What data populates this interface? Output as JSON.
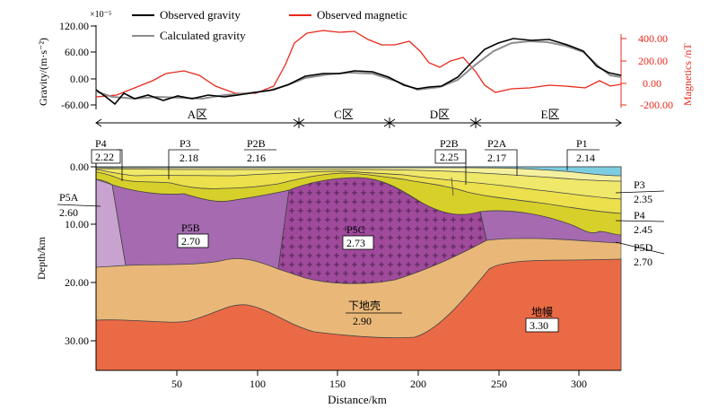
{
  "colors": {
    "observed_gravity": "#000000",
    "calculated_gravity": "#8c8c8c",
    "observed_magnetic": "#e8281c",
    "magnetic_axis": "#e8281c",
    "P1_water": "#7ccde0",
    "P2A": "#f4f0a0",
    "P2B": "#f0e86a",
    "P3": "#ece04c",
    "P4": "#d8d02a",
    "P5A": "#c9a3cf",
    "P5B": "#a56ab0",
    "P5C": "#a04a9c",
    "P5D": "#a56ab0",
    "lower_crust": "#e9b878",
    "mantle": "#ea6a45"
  },
  "top_panel": {
    "y_exponent": "×10⁻⁵",
    "y_label": "Gravity/(m·s⁻²)",
    "y_ticks": [
      "120.00",
      "60.00",
      "0.00",
      "-60.00"
    ],
    "right_label": "Magnetics /nT",
    "right_ticks": [
      "400.00",
      "200.00",
      "0.00",
      "-200.00"
    ],
    "legend": {
      "observed_gravity": "Observed gravity",
      "calculated_gravity": "Calculated gravity",
      "observed_magnetic": "Observed magnetic"
    },
    "zones": [
      "A区",
      "C区",
      "D区",
      "E区"
    ]
  },
  "section": {
    "y_label": "Depth/km",
    "x_label": "Distance/km",
    "y_ticks": [
      "0.00",
      "10.00",
      "20.00",
      "30.00"
    ],
    "x_ticks": [
      "50",
      "100",
      "150",
      "200",
      "250",
      "300"
    ],
    "labels": {
      "p4_top_name": "P4",
      "p4_top_val": "2.22",
      "p3_top_name": "P3",
      "p3_top_val": "2.18",
      "p2b_left_name": "P2B",
      "p2b_left_val": "2.16",
      "p2b_right_name": "P2B",
      "p2b_right_val": "2.25",
      "p2a_name": "P2A",
      "p2a_val": "2.17",
      "p1_name": "P1",
      "p1_val": "2.14",
      "p5a_name": "P5A",
      "p5a_val": "2.60",
      "p5b_name": "P5B",
      "p5b_val": "2.70",
      "p5c_name": "P5C",
      "p5c_val": "2.73",
      "p3_right_name": "P3",
      "p3_right_val": "2.35",
      "p4_right_name": "P4",
      "p4_right_val": "2.45",
      "p5d_name": "P5D",
      "p5d_val": "2.70",
      "lower_crust_name": "下地壳",
      "lower_crust_val": "2.90",
      "mantle_name": "地幔",
      "mantle_val": "3.30"
    }
  }
}
